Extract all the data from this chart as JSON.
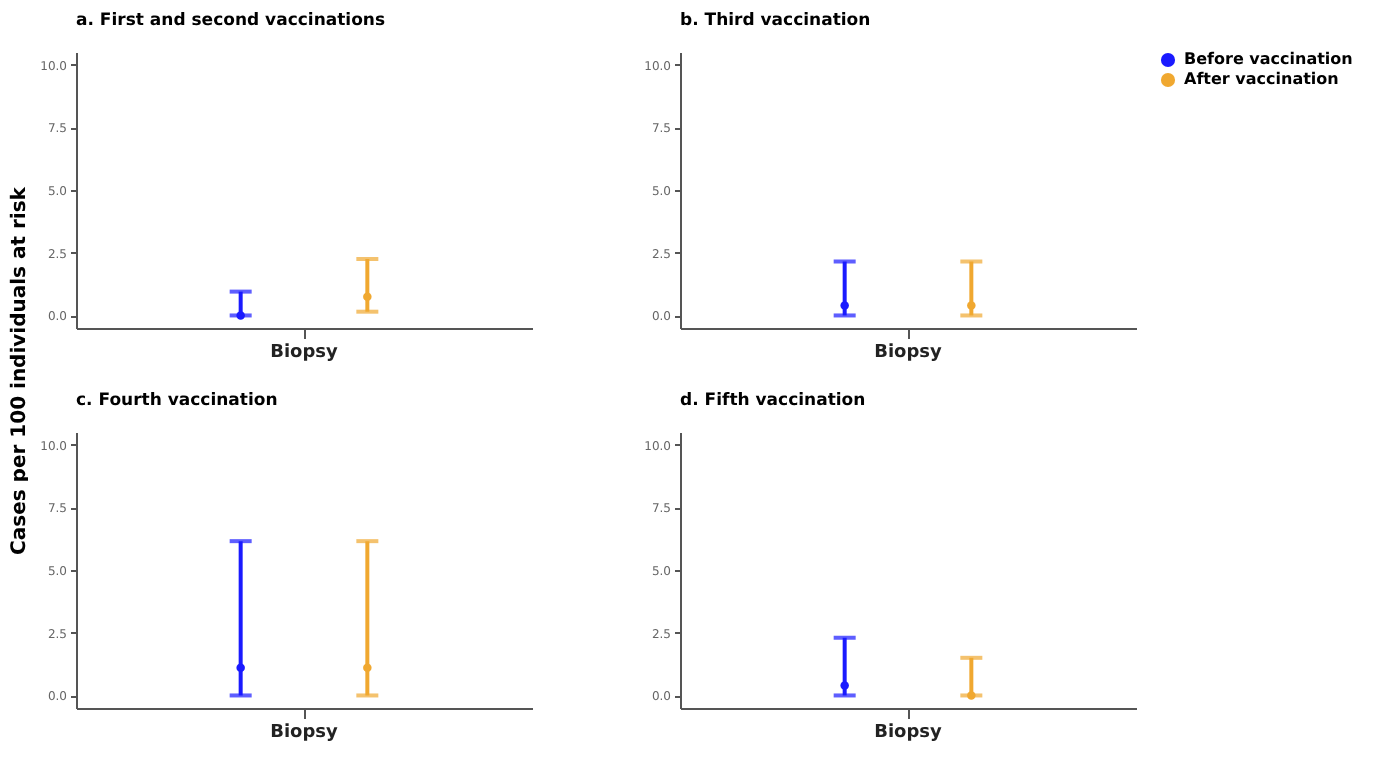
{
  "chart_data": [
    {
      "type": "scatter",
      "title": "a. First and second vaccinations",
      "ylabel": "Cases per 100 individuals at risk",
      "categories": [
        "Biopsy"
      ],
      "marker": "circle",
      "grid": false,
      "ylim": [
        -0.5,
        10.5
      ],
      "yticks": [
        {
          "value": 0,
          "label": "0.0"
        },
        {
          "value": 2.5,
          "label": "2.5"
        },
        {
          "value": 5,
          "label": "5.0"
        },
        {
          "value": 7.5,
          "label": "7.5"
        },
        {
          "value": 10,
          "label": "10.0"
        }
      ],
      "series": [
        {
          "color": "#1a1aff",
          "values": [
            0.0
          ],
          "errors": [
            [
              0.0,
              0.95
            ]
          ]
        },
        {
          "color": "#f0a830",
          "values": [
            0.75
          ],
          "errors": [
            [
              0.15,
              2.25
            ]
          ]
        }
      ]
    },
    {
      "type": "scatter",
      "title": "b. Third vaccination",
      "categories": [
        "Biopsy"
      ],
      "marker": "circle",
      "grid": false,
      "legend": "right",
      "ylim": [
        -0.5,
        10.5
      ],
      "yticks": [
        {
          "value": 0,
          "label": "0.0"
        },
        {
          "value": 2.5,
          "label": "2.5"
        },
        {
          "value": 5,
          "label": "5.0"
        },
        {
          "value": 7.5,
          "label": "7.5"
        },
        {
          "value": 10,
          "label": "10.0"
        }
      ],
      "series": [
        {
          "name": "Before vaccination",
          "color": "#1a1aff",
          "values": [
            0.4
          ],
          "errors": [
            [
              0.0,
              2.15
            ]
          ]
        },
        {
          "name": "After vaccination",
          "color": "#f0a830",
          "values": [
            0.4
          ],
          "errors": [
            [
              0.0,
              2.15
            ]
          ]
        }
      ]
    },
    {
      "type": "scatter",
      "title": "c. Fourth vaccination",
      "categories": [
        "Biopsy"
      ],
      "marker": "circle",
      "grid": false,
      "ylim": [
        -0.5,
        10.5
      ],
      "yticks": [
        {
          "value": 0,
          "label": "0.0"
        },
        {
          "value": 2.5,
          "label": "2.5"
        },
        {
          "value": 5,
          "label": "5.0"
        },
        {
          "value": 7.5,
          "label": "7.5"
        },
        {
          "value": 10,
          "label": "10.0"
        }
      ],
      "series": [
        {
          "color": "#1a1aff",
          "values": [
            1.1
          ],
          "errors": [
            [
              0.0,
              6.15
            ]
          ]
        },
        {
          "color": "#f0a830",
          "values": [
            1.1
          ],
          "errors": [
            [
              0.0,
              6.15
            ]
          ]
        }
      ]
    },
    {
      "type": "scatter",
      "title": "d. Fifth vaccination",
      "categories": [
        "Biopsy"
      ],
      "marker": "circle",
      "grid": false,
      "ylim": [
        -0.5,
        10.5
      ],
      "yticks": [
        {
          "value": 0,
          "label": "0.0"
        },
        {
          "value": 2.5,
          "label": "2.5"
        },
        {
          "value": 5,
          "label": "5.0"
        },
        {
          "value": 7.5,
          "label": "7.5"
        },
        {
          "value": 10,
          "label": "10.0"
        }
      ],
      "series": [
        {
          "color": "#1a1aff",
          "values": [
            0.4
          ],
          "errors": [
            [
              0.0,
              2.3
            ]
          ]
        },
        {
          "color": "#f0a830",
          "values": [
            0.0
          ],
          "errors": [
            [
              0.0,
              1.5
            ]
          ]
        }
      ]
    }
  ]
}
